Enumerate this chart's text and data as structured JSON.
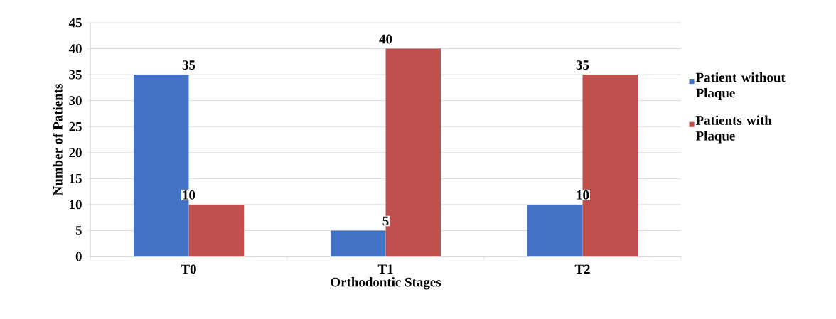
{
  "chart_data": {
    "type": "bar",
    "xlabel": "Orthodontic Stages",
    "ylabel": "Number of Patients",
    "categories": [
      "T0",
      "T1",
      "T2"
    ],
    "series": [
      {
        "name": "Patient without Plaque",
        "color": "#4472c4",
        "values": [
          35,
          5,
          10
        ]
      },
      {
        "name": "Patients with Plaque",
        "color": "#c0504d",
        "values": [
          10,
          40,
          35
        ]
      }
    ],
    "ylim": [
      0,
      45
    ],
    "yticks": [
      0,
      5,
      10,
      15,
      20,
      25,
      30,
      35,
      40,
      45
    ],
    "grid": "y",
    "legend": "right",
    "data_labels": true
  }
}
